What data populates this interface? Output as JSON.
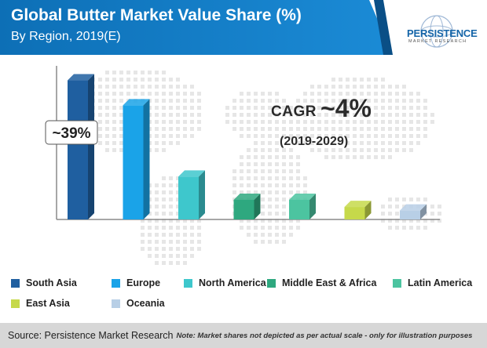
{
  "header": {
    "title": "Global Butter Market Value Share (%)",
    "subtitle": "By Region, 2019(E)"
  },
  "logo": {
    "word": "PERSISTENCE",
    "sub": "MARKET RESEARCH"
  },
  "callout": {
    "label": "~39%"
  },
  "cagr": {
    "label": "CAGR",
    "value": "~4%",
    "period": "(2019-2029)"
  },
  "chart_data": {
    "type": "bar",
    "title": "Global Butter Market Value Share (%)",
    "subtitle": "By Region, 2019(E)",
    "categories": [
      "South Asia",
      "Europe",
      "North America",
      "Middle East & Africa",
      "Latin America",
      "East Asia",
      "Oceania"
    ],
    "values": [
      39,
      32,
      12,
      5.5,
      5.5,
      3.5,
      2.5
    ],
    "colors": [
      "#1f5fa0",
      "#1aa3e8",
      "#3ec7cc",
      "#2ea87f",
      "#4cc4a0",
      "#c6d94a",
      "#b8cfe6"
    ],
    "data_labels": [
      {
        "category": "South Asia",
        "text": "~39%"
      }
    ],
    "ylim": [
      0,
      40
    ],
    "xlabel": "",
    "ylabel": "",
    "grid": false,
    "legend_position": "bottom"
  },
  "legend": {
    "items": [
      {
        "label": "South Asia",
        "color": "#1f5fa0"
      },
      {
        "label": "Europe",
        "color": "#1aa3e8"
      },
      {
        "label": "North America",
        "color": "#3ec7cc"
      },
      {
        "label": "Middle East & Africa",
        "color": "#2ea87f"
      },
      {
        "label": "Latin America",
        "color": "#4cc4a0"
      },
      {
        "label": "East Asia",
        "color": "#c6d94a"
      },
      {
        "label": "Oceania",
        "color": "#b8cfe6"
      }
    ]
  },
  "footer": {
    "source": "Source: Persistence Market Research",
    "note": "Note: Market shares not depicted as per actual scale - only for illustration purposes"
  }
}
